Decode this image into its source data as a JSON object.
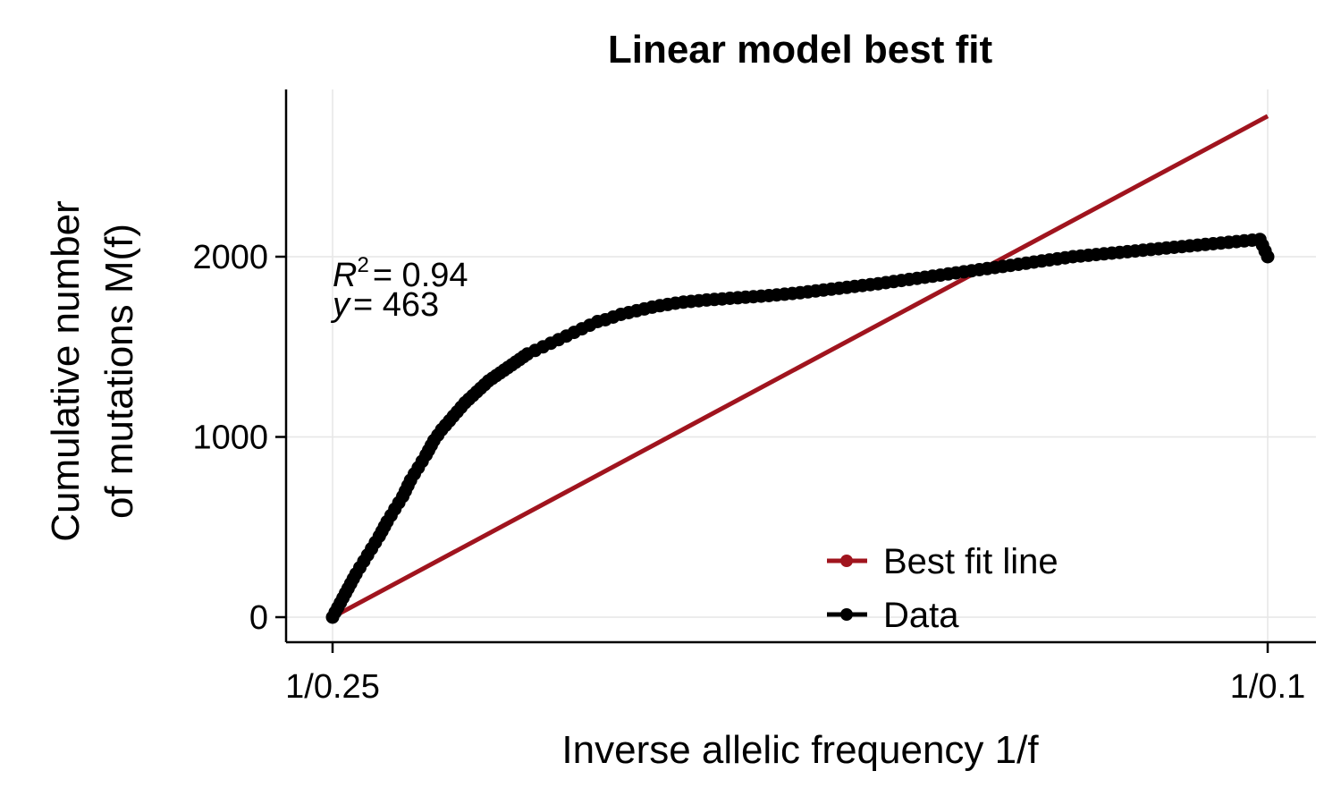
{
  "chart_data": {
    "type": "line",
    "title": "Linear model best fit",
    "xlabel": "Inverse allelic frequency 1/f",
    "ylabel_lines": [
      "Cumulative number",
      "of mutations M(f)"
    ],
    "xlim": [
      4,
      10
    ],
    "ylim": [
      -140,
      2930
    ],
    "x_ticks": [
      {
        "value": 4,
        "label": "1/0.25"
      },
      {
        "value": 10,
        "label": "1/0.1"
      }
    ],
    "y_ticks": [
      {
        "value": 0,
        "label": "0"
      },
      {
        "value": 1000,
        "label": "1000"
      },
      {
        "value": 2000,
        "label": "2000"
      }
    ],
    "grid": true,
    "annotation": {
      "r2_label": "R",
      "r2_exp": "2",
      "r2_value": "= 0.94",
      "y_label": "y",
      "y_value": "= 463"
    },
    "legend": {
      "placement": "bottom-right",
      "items": [
        {
          "label": "Best fit line",
          "color": "#a0141e"
        },
        {
          "label": "Data",
          "color": "#000000"
        }
      ]
    },
    "series": [
      {
        "name": "Best fit line",
        "color": "#a0141e",
        "x": [
          4,
          10
        ],
        "y": [
          0,
          2780
        ]
      },
      {
        "name": "Data",
        "color": "#000000",
        "x": [
          4.0,
          4.05,
          4.1,
          4.15,
          4.2,
          4.25,
          4.3,
          4.35,
          4.4,
          4.45,
          4.5,
          4.55,
          4.6,
          4.65,
          4.7,
          4.75,
          4.8,
          4.85,
          4.9,
          4.95,
          5.0,
          5.05,
          5.1,
          5.15,
          5.2,
          5.25,
          5.3,
          5.35,
          5.4,
          5.45,
          5.5,
          5.55,
          5.6,
          5.65,
          5.7,
          5.75,
          5.8,
          5.85,
          5.9,
          5.95,
          6.0,
          6.05,
          6.1,
          6.15,
          6.2,
          6.25,
          6.3,
          6.35,
          6.4,
          6.45,
          6.5,
          6.55,
          6.6,
          6.65,
          6.7,
          6.75,
          6.8,
          6.85,
          6.9,
          6.95,
          7.0,
          7.05,
          7.1,
          7.15,
          7.2,
          7.25,
          7.3,
          7.35,
          7.4,
          7.45,
          7.5,
          7.55,
          7.6,
          7.65,
          7.7,
          7.75,
          7.8,
          7.85,
          7.9,
          7.95,
          8.0,
          8.05,
          8.1,
          8.15,
          8.2,
          8.25,
          8.3,
          8.35,
          8.4,
          8.45,
          8.5,
          8.55,
          8.6,
          8.65,
          8.7,
          8.75,
          8.8,
          8.85,
          8.9,
          8.95,
          9.0,
          9.05,
          9.1,
          9.15,
          9.2,
          9.25,
          9.3,
          9.35,
          9.4,
          9.45,
          9.5,
          9.55,
          9.6,
          9.65,
          9.7,
          9.75,
          9.8,
          9.85,
          9.9,
          9.95,
          10.0
        ],
        "y": [
          0,
          80,
          160,
          240,
          310,
          380,
          450,
          530,
          600,
          670,
          760,
          830,
          900,
          980,
          1040,
          1090,
          1140,
          1190,
          1230,
          1270,
          1310,
          1340,
          1370,
          1400,
          1430,
          1460,
          1480,
          1500,
          1520,
          1540,
          1560,
          1580,
          1600,
          1620,
          1640,
          1650,
          1665,
          1680,
          1690,
          1700,
          1710,
          1720,
          1728,
          1735,
          1742,
          1748,
          1752,
          1756,
          1760,
          1763,
          1766,
          1769,
          1772,
          1775,
          1778,
          1781,
          1784,
          1788,
          1792,
          1796,
          1800,
          1805,
          1810,
          1815,
          1820,
          1825,
          1830,
          1835,
          1840,
          1845,
          1850,
          1856,
          1862,
          1868,
          1874,
          1880,
          1886,
          1892,
          1898,
          1904,
          1910,
          1916,
          1922,
          1928,
          1934,
          1940,
          1946,
          1952,
          1958,
          1964,
          1970,
          1976,
          1982,
          1988,
          1994,
          2000,
          2004,
          2008,
          2012,
          2016,
          2020,
          2024,
          2028,
          2032,
          2036,
          2040,
          2044,
          2048,
          2052,
          2056,
          2060,
          2064,
          2068,
          2072,
          2076,
          2080,
          2084,
          2088,
          2092,
          2096,
          2000
        ]
      }
    ]
  }
}
